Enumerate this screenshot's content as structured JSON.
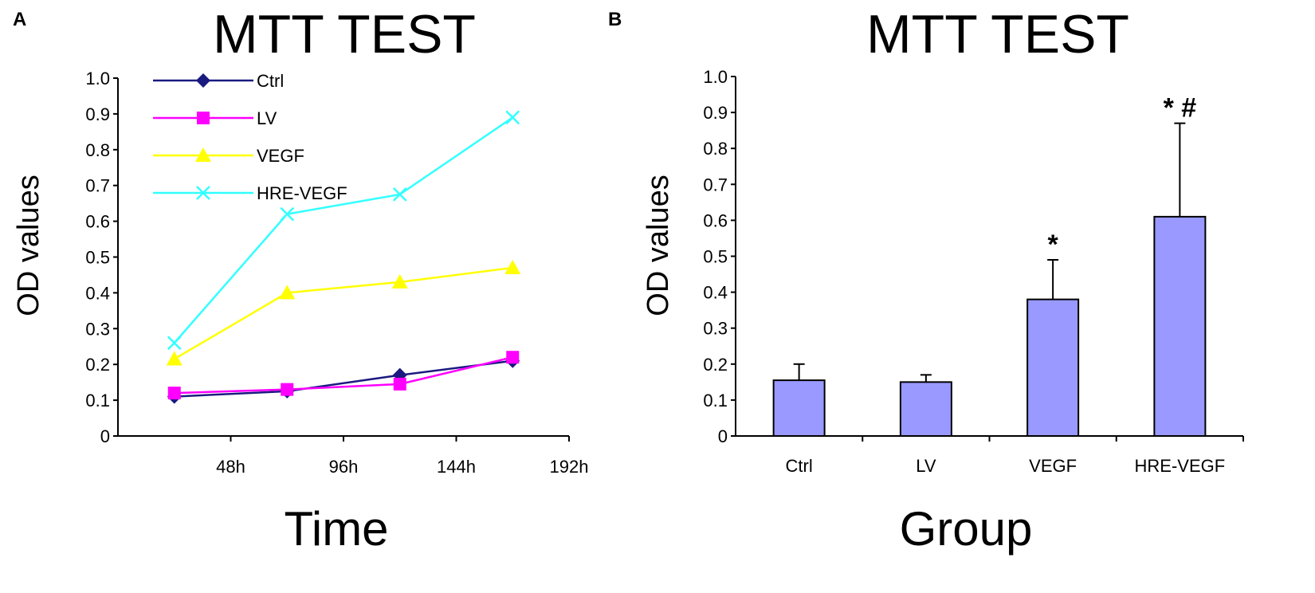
{
  "chart_data": [
    {
      "panel": "A",
      "type": "line",
      "title": "MTT TEST",
      "xlabel": "Time",
      "ylabel": "OD values",
      "categories": [
        "48h",
        "96h",
        "144h",
        "192h"
      ],
      "x_points": [
        24,
        72,
        120,
        168
      ],
      "xlim": [
        0,
        192
      ],
      "ylim": [
        0,
        1.0
      ],
      "yticks": [
        "0",
        "0.1",
        "0.2",
        "0.3",
        "0.4",
        "0.5",
        "0.6",
        "0.7",
        "0.8",
        "0.9",
        "1.0"
      ],
      "legend_position": "top-left",
      "series": [
        {
          "name": "Ctrl",
          "values": [
            0.11,
            0.125,
            0.17,
            0.21
          ],
          "color": "#1a1a80",
          "marker": "diamond"
        },
        {
          "name": "LV",
          "values": [
            0.12,
            0.13,
            0.145,
            0.22
          ],
          "color": "#ff00ff",
          "marker": "square"
        },
        {
          "name": "VEGF",
          "values": [
            0.215,
            0.4,
            0.43,
            0.47
          ],
          "color": "#ffff00",
          "marker": "triangle"
        },
        {
          "name": "HRE-VEGF",
          "values": [
            0.26,
            0.62,
            0.675,
            0.89
          ],
          "color": "#33ffff",
          "marker": "x"
        }
      ]
    },
    {
      "panel": "B",
      "type": "bar",
      "title": "MTT TEST",
      "xlabel": "Group",
      "ylabel": "OD values",
      "categories": [
        "Ctrl",
        "LV",
        "VEGF",
        "HRE-VEGF"
      ],
      "values": [
        0.155,
        0.15,
        0.38,
        0.61
      ],
      "errors": [
        0.045,
        0.02,
        0.11,
        0.26
      ],
      "annotations": [
        "",
        "",
        "*",
        "* #"
      ],
      "ylim": [
        0,
        1.0
      ],
      "yticks": [
        "0",
        "0.1",
        "0.2",
        "0.3",
        "0.4",
        "0.5",
        "0.6",
        "0.7",
        "0.8",
        "0.9",
        "1.0"
      ],
      "bar_color": "#9999ff"
    }
  ]
}
